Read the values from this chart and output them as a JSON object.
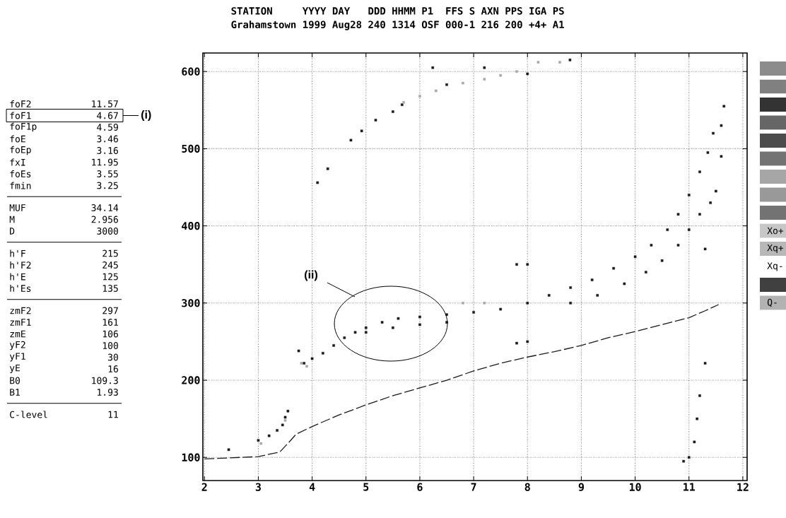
{
  "chart_data": {
    "type": "scatter",
    "title": "STATION     YYYY DAY   DDD HHMM P1  FFS S AXN PPS IGA PS",
    "subtitle": "Grahamstown 1999 Aug28 240 1314 OSF 000-1 216 200 +4+ A1",
    "xlim": [
      1.97,
      12.08
    ],
    "ylim": [
      70,
      624
    ],
    "xticks": [
      2,
      3,
      4,
      5,
      6,
      7,
      8,
      9,
      10,
      11,
      12
    ],
    "yticks": [
      100,
      200,
      300,
      400,
      500,
      600
    ],
    "grid": true,
    "series": [
      {
        "type": "line",
        "color": "#1a1a1a",
        "line_style": "dashed",
        "marker": "none",
        "x": [
          2.0,
          3.0,
          3.4,
          3.6,
          3.7,
          4.0,
          4.5,
          5.0,
          5.5,
          6.0,
          6.5,
          7.0,
          7.5,
          8.0,
          8.5,
          9.0,
          9.5,
          10.0,
          10.5,
          11.0,
          11.3,
          11.55
        ],
        "values": [
          98,
          101,
          107,
          122,
          130,
          140,
          155,
          168,
          180,
          190,
          200,
          212,
          222,
          230,
          237,
          245,
          255,
          263,
          272,
          281,
          290,
          298
        ]
      },
      {
        "color": "#1a1a1a",
        "marker": "square",
        "x": [
          3.85,
          4.0,
          4.2,
          4.4,
          4.6,
          4.8,
          5.0,
          5.3,
          5.6,
          6.0,
          6.5,
          7.0,
          7.5,
          8.0,
          8.4,
          8.8,
          9.2,
          9.6,
          10.0,
          10.3,
          10.6,
          10.8,
          11.0,
          11.2,
          11.35,
          11.45,
          5.0,
          5.5,
          6.0,
          6.5
        ],
        "values": [
          222,
          228,
          235,
          245,
          255,
          262,
          268,
          275,
          280,
          282,
          285,
          288,
          292,
          300,
          310,
          320,
          330,
          345,
          360,
          375,
          395,
          415,
          440,
          470,
          495,
          520,
          262,
          268,
          272,
          275
        ]
      },
      {
        "color": "#1a1a1a",
        "marker": "square",
        "x": [
          8.8,
          9.3,
          9.8,
          10.2,
          10.5,
          10.8,
          11.0,
          11.2,
          11.4,
          11.5
        ],
        "values": [
          300,
          310,
          325,
          340,
          355,
          375,
          395,
          415,
          430,
          445
        ]
      },
      {
        "color": "#1a1a1a",
        "marker": "square",
        "x": [
          4.1,
          4.29,
          4.72,
          4.92,
          5.18,
          5.5,
          5.67,
          6.24,
          6.5,
          7.2,
          8.0,
          8.79
        ],
        "values": [
          456,
          474,
          511,
          523,
          537,
          548,
          557,
          605,
          583,
          605,
          597,
          615
        ]
      },
      {
        "color": "#a8a8a8",
        "marker": "square",
        "x": [
          5.7,
          6.0,
          6.3,
          6.8,
          7.2,
          7.5,
          7.8,
          8.2,
          8.6
        ],
        "values": [
          560,
          568,
          575,
          585,
          590,
          595,
          600,
          612,
          612
        ]
      },
      {
        "color": "#1a1a1a",
        "marker": "square",
        "x": [
          2.45,
          3.0,
          3.2,
          3.35,
          3.45,
          3.5,
          3.55,
          3.75,
          10.9,
          11.0,
          11.1,
          11.15,
          11.2,
          11.3,
          11.3,
          11.6,
          11.65,
          7.8,
          7.8,
          8.0,
          8.0,
          11.6
        ],
        "values": [
          110,
          122,
          128,
          135,
          142,
          152,
          160,
          238,
          95,
          100,
          120,
          150,
          180,
          222,
          370,
          530,
          555,
          350,
          248,
          250,
          350,
          490
        ]
      },
      {
        "color": "#a8a8a8",
        "marker": "square",
        "x": [
          3.05,
          3.5,
          3.8,
          3.9,
          6.8,
          7.2
        ],
        "values": [
          118,
          148,
          222,
          218,
          300,
          300
        ]
      }
    ],
    "annotations": [
      "(i)",
      "(ii)",
      "foF2",
      "11.57",
      "foF1",
      "4.67",
      "foF1p",
      "4.59",
      "foE",
      "3.46",
      "foEp",
      "3.16",
      "fxI",
      "11.95",
      "foEs",
      "3.55",
      "fmin",
      "3.25",
      "MUF",
      "34.14",
      "M",
      "2.956",
      "D",
      "3000",
      "h'F",
      "215",
      "h'F2",
      "245",
      "h'E",
      "125",
      "h'Es",
      "135",
      "zmF2",
      "297",
      "zmF1",
      "161",
      "zmE",
      "106",
      "yF2",
      "100",
      "yF1",
      "30",
      "yE",
      "16",
      "B0",
      "109.3",
      "B1",
      "1.93",
      "C-level",
      "11",
      "Xo+",
      "Xq+",
      "Xq-",
      "Q-"
    ]
  }
}
